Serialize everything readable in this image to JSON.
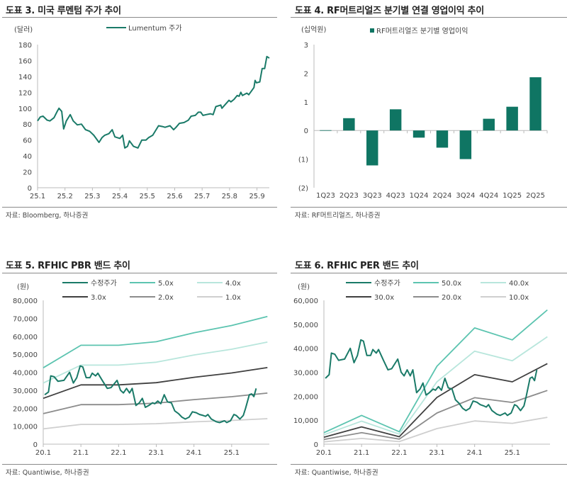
{
  "chart_data": [
    {
      "type": "line",
      "title": "도표 3. 미국 루멘텀 주가 추이",
      "ylabel": "(달러)",
      "source": "자료: Bloomberg, 하나증권",
      "x_ticks": [
        "25.1",
        "25.2",
        "25.3",
        "25.4",
        "25.5",
        "25.6",
        "25.7",
        "25.8",
        "25.9"
      ],
      "y_ticks": [
        "0",
        "20",
        "40",
        "60",
        "80",
        "100",
        "120",
        "140",
        "160",
        "180"
      ],
      "xlim": [
        0,
        8.45
      ],
      "ylim": [
        0,
        180
      ],
      "legend": "top-center",
      "series": [
        {
          "name": "Lumentum 주가",
          "color": "#1a7a68",
          "x": [
            0,
            0.1,
            0.2,
            0.35,
            0.45,
            0.6,
            0.7,
            0.78,
            0.88,
            0.95,
            1.05,
            1.19,
            1.3,
            1.45,
            1.6,
            1.75,
            1.9,
            2.05,
            2.24,
            2.35,
            2.45,
            2.6,
            2.72,
            2.82,
            3.0,
            3.1,
            3.18,
            3.28,
            3.35,
            3.5,
            3.66,
            3.8,
            3.95,
            4.05,
            4.2,
            4.41,
            4.55,
            4.65,
            4.83,
            4.96,
            5.05,
            5.17,
            5.34,
            5.5,
            5.6,
            5.75,
            5.86,
            5.95,
            6.03,
            6.15,
            6.3,
            6.4,
            6.5,
            6.68,
            6.72,
            6.85,
            6.98,
            7.05,
            7.16,
            7.28,
            7.35,
            7.41,
            7.47,
            7.63,
            7.7,
            7.89,
            7.93,
            7.98,
            8.1,
            8.19,
            8.28,
            8.36,
            8.45
          ],
          "y": [
            84,
            89,
            90,
            85,
            84,
            88,
            95,
            100,
            96,
            74,
            84,
            92,
            84,
            79,
            80,
            73,
            71,
            66,
            57,
            63,
            66,
            68,
            73,
            64,
            62,
            66,
            50,
            52,
            59,
            52,
            50,
            60,
            60,
            63,
            66,
            78,
            77,
            76,
            78,
            73,
            76,
            81,
            82,
            85,
            90,
            91,
            95,
            95,
            91,
            92,
            93,
            92,
            102,
            104,
            100,
            105,
            110,
            108,
            111,
            116,
            115,
            120,
            116,
            119,
            117,
            126,
            135,
            132,
            133,
            150,
            150,
            165,
            163
          ]
        }
      ]
    },
    {
      "type": "bar",
      "title": "도표 4. RF머트리얼즈 분기별 연결 영업이익 추이",
      "ylabel": "(십억원)",
      "source": "자료: RF머트리얼즈, 하나증권",
      "categories": [
        "1Q23",
        "2Q23",
        "3Q23",
        "4Q23",
        "1Q24",
        "2Q24",
        "3Q24",
        "4Q24",
        "1Q25",
        "2Q25"
      ],
      "y_ticks": [
        "(2)",
        "(1)",
        "0",
        "1",
        "2",
        "3"
      ],
      "ylim": [
        -2,
        3
      ],
      "legend": "top-center",
      "series": [
        {
          "name": "RF머트리얼즈 분기별 영업이익",
          "color": "#0f7563",
          "values": [
            0.01,
            0.43,
            -1.22,
            0.74,
            -0.25,
            -0.6,
            -1.0,
            0.41,
            0.83,
            1.86
          ]
        }
      ]
    },
    {
      "type": "line",
      "title": "도표 5. RFHIC PBR 밴드 추이",
      "ylabel": "(원)",
      "source": "자료: Quantiwise, 하나증권",
      "x_ticks": [
        "20.1",
        "21.1",
        "22.1",
        "23.1",
        "24.1",
        "25.1"
      ],
      "y_ticks": [
        "0",
        "10,000",
        "20,000",
        "30,000",
        "40,000",
        "50,000",
        "60,000",
        "70,000",
        "80,000"
      ],
      "xlim": [
        0,
        6
      ],
      "ylim": [
        0,
        80000
      ],
      "legend": "top",
      "series": [
        {
          "name": "수정주가",
          "color": "#1a7a68",
          "x": [
            0.04,
            0.14,
            0.2,
            0.29,
            0.39,
            0.55,
            0.7,
            0.8,
            0.89,
            0.98,
            1.05,
            1.14,
            1.24,
            1.3,
            1.39,
            1.45,
            1.58,
            1.7,
            1.8,
            1.96,
            2.05,
            2.13,
            2.21,
            2.29,
            2.36,
            2.46,
            2.55,
            2.63,
            2.71,
            2.8,
            2.9,
            2.96,
            3.04,
            3.12,
            3.21,
            3.3,
            3.4,
            3.49,
            3.59,
            3.68,
            3.77,
            3.87,
            3.96,
            4.06,
            4.15,
            4.24,
            4.31,
            4.37,
            4.46,
            4.59,
            4.68,
            4.81,
            4.87,
            4.97,
            5.06,
            5.12,
            5.22,
            5.31,
            5.37,
            5.47,
            5.53,
            5.59,
            5.65
          ],
          "y": [
            27500,
            29000,
            38000,
            37500,
            35000,
            35500,
            40000,
            34000,
            37000,
            43500,
            43000,
            37000,
            37000,
            39500,
            38000,
            39500,
            35000,
            31000,
            31500,
            35500,
            30000,
            28500,
            31000,
            28500,
            31000,
            21500,
            23000,
            25500,
            20500,
            21500,
            23000,
            22500,
            24000,
            22500,
            27500,
            23500,
            23000,
            18500,
            17000,
            15000,
            14000,
            15000,
            18000,
            17500,
            16500,
            16000,
            15500,
            16500,
            14000,
            12500,
            12000,
            13000,
            12000,
            13000,
            16500,
            16000,
            14000,
            16000,
            20000,
            27500,
            28000,
            26500,
            31000
          ]
        },
        {
          "name": "5.0x",
          "color": "#5cc4b0",
          "x": [
            0,
            1,
            2,
            3,
            4,
            5,
            5.95
          ],
          "y": [
            42500,
            55000,
            55000,
            57000,
            62000,
            66000,
            71000
          ]
        },
        {
          "name": "4.0x",
          "color": "#b8e6dc",
          "x": [
            0,
            1,
            2,
            3,
            4,
            5,
            5.95
          ],
          "y": [
            34000,
            44000,
            44000,
            45600,
            49600,
            52800,
            56800
          ]
        },
        {
          "name": "3.0x",
          "color": "#404040",
          "x": [
            0,
            1,
            2,
            3,
            4,
            5,
            5.95
          ],
          "y": [
            25500,
            33000,
            33000,
            34200,
            37200,
            39600,
            42600
          ]
        },
        {
          "name": "2.0x",
          "color": "#8c8c8c",
          "x": [
            0,
            1,
            2,
            3,
            4,
            5,
            5.95
          ],
          "y": [
            17000,
            22000,
            22000,
            22800,
            24800,
            26400,
            28400
          ]
        },
        {
          "name": "1.0x",
          "color": "#cfcfcf",
          "x": [
            0,
            1,
            2,
            3,
            4,
            5,
            5.95
          ],
          "y": [
            8500,
            11000,
            11000,
            11400,
            12400,
            13200,
            14200
          ]
        }
      ]
    },
    {
      "type": "line",
      "title": "도표 6. RFHIC PER 밴드 추이",
      "ylabel": "(원)",
      "source": "자료: Quantiwise, 하나증권",
      "x_ticks": [
        "20.1",
        "21.1",
        "22.1",
        "23.1",
        "24.1",
        "25.1"
      ],
      "y_ticks": [
        "0",
        "10,000",
        "20,000",
        "30,000",
        "40,000",
        "50,000",
        "60,000"
      ],
      "xlim": [
        0,
        6
      ],
      "ylim": [
        0,
        60000
      ],
      "legend": "top",
      "series": [
        {
          "name": "수정주가",
          "color": "#1a7a68",
          "x": [
            0.04,
            0.14,
            0.2,
            0.29,
            0.39,
            0.55,
            0.7,
            0.8,
            0.89,
            0.98,
            1.05,
            1.14,
            1.24,
            1.3,
            1.39,
            1.45,
            1.58,
            1.7,
            1.8,
            1.96,
            2.05,
            2.13,
            2.21,
            2.29,
            2.36,
            2.46,
            2.55,
            2.63,
            2.71,
            2.8,
            2.9,
            2.96,
            3.04,
            3.12,
            3.21,
            3.3,
            3.4,
            3.49,
            3.59,
            3.68,
            3.77,
            3.87,
            3.96,
            4.06,
            4.15,
            4.24,
            4.31,
            4.37,
            4.46,
            4.59,
            4.68,
            4.81,
            4.87,
            4.97,
            5.06,
            5.12,
            5.22,
            5.31,
            5.37,
            5.47,
            5.53,
            5.59,
            5.65
          ],
          "y": [
            27500,
            29000,
            38000,
            37500,
            35000,
            35500,
            40000,
            34000,
            37000,
            43500,
            43000,
            37000,
            37000,
            39500,
            38000,
            39500,
            35000,
            31000,
            31500,
            35500,
            30000,
            28500,
            31000,
            28500,
            31000,
            21500,
            23000,
            25500,
            20500,
            21500,
            23000,
            22500,
            24000,
            22500,
            27500,
            23500,
            23000,
            18500,
            17000,
            15000,
            14000,
            15000,
            18000,
            17500,
            16500,
            16000,
            15500,
            16500,
            14000,
            12500,
            12000,
            13000,
            12000,
            13000,
            16500,
            16000,
            14000,
            16000,
            20000,
            27500,
            28000,
            26500,
            31000
          ]
        },
        {
          "name": "50.0x",
          "color": "#5cc4b0",
          "x": [
            0,
            1,
            2,
            3,
            4,
            5,
            5.93
          ],
          "y": [
            4800,
            12000,
            5200,
            32500,
            48500,
            43500,
            56000
          ]
        },
        {
          "name": "40.0x",
          "color": "#b8e6dc",
          "x": [
            0,
            1,
            2,
            3,
            4,
            5,
            5.93
          ],
          "y": [
            3900,
            9600,
            4200,
            26000,
            38800,
            34800,
            44800
          ]
        },
        {
          "name": "30.0x",
          "color": "#404040",
          "x": [
            0,
            1,
            2,
            3,
            4,
            5,
            5.93
          ],
          "y": [
            2900,
            7200,
            3100,
            19500,
            29000,
            26000,
            33600
          ]
        },
        {
          "name": "20.0x",
          "color": "#8c8c8c",
          "x": [
            0,
            1,
            2,
            3,
            4,
            5,
            5.93
          ],
          "y": [
            1950,
            4800,
            2100,
            13000,
            19400,
            17400,
            22400
          ]
        },
        {
          "name": "10.0x",
          "color": "#cfcfcf",
          "x": [
            0,
            1,
            2,
            3,
            4,
            5,
            5.93
          ],
          "y": [
            980,
            2400,
            1050,
            6500,
            9700,
            8700,
            11200
          ]
        }
      ]
    }
  ]
}
